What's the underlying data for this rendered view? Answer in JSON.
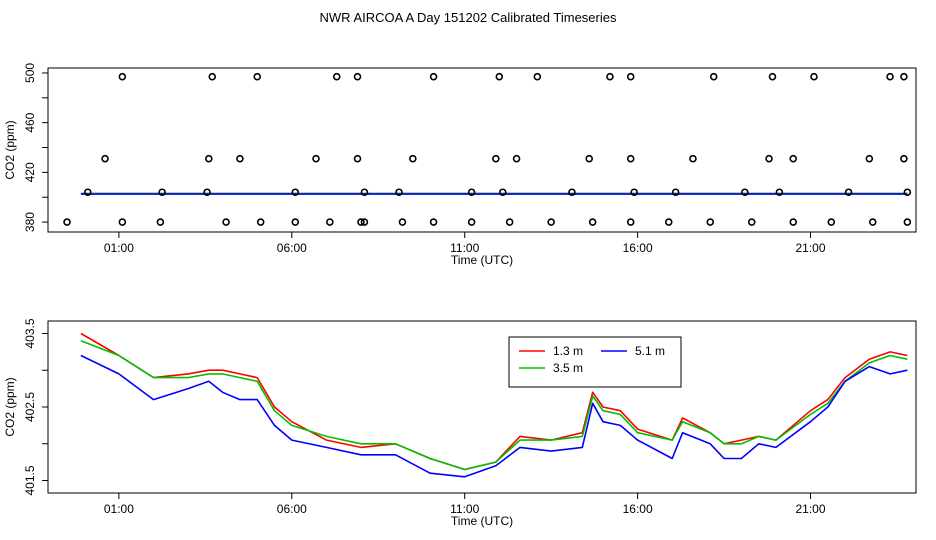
{
  "page_title": "NWR AIRCOA A  Day 151202  Calibrated Timeseries",
  "chart_data": [
    {
      "type": "scatter",
      "title": "",
      "xlabel": "Time (UTC)",
      "ylabel": "CO2 (ppm)",
      "xlim": [
        -1.05,
        24.05
      ],
      "ylim": [
        372,
        504
      ],
      "x_ticks": [
        {
          "value": 1,
          "label": "01:00"
        },
        {
          "value": 6,
          "label": "06:00"
        },
        {
          "value": 11,
          "label": "11:00"
        },
        {
          "value": 16,
          "label": "16:00"
        },
        {
          "value": 21,
          "label": "21:00"
        }
      ],
      "y_ticks": [
        {
          "value": 380,
          "label": "380"
        },
        {
          "value": 420,
          "label": "420"
        },
        {
          "value": 460,
          "label": "460"
        },
        {
          "value": 500,
          "label": "500"
        }
      ],
      "minor_y_ticks": [
        400,
        440,
        480
      ],
      "flask_points": {
        "x": [
          -0.5,
          1.1,
          2.2,
          4.1,
          5.1,
          6.1,
          7.1,
          8.0,
          8.1,
          9.2,
          10.1,
          11.2,
          12.3,
          13.5,
          14.7,
          15.8,
          16.9,
          18.1,
          19.3,
          20.5,
          21.6,
          22.8,
          23.8,
          0.1,
          2.25,
          3.55,
          6.1,
          8.1,
          9.1,
          11.2,
          12.1,
          14.1,
          15.9,
          17.1,
          19.1,
          20.1,
          22.1,
          23.8,
          0.6,
          3.6,
          4.5,
          6.7,
          7.9,
          9.5,
          11.9,
          12.5,
          14.6,
          15.8,
          17.6,
          19.8,
          20.5,
          22.7,
          23.7,
          1.1,
          3.7,
          5.0,
          7.3,
          7.9,
          10.1,
          12.0,
          13.1,
          15.2,
          15.8,
          18.2,
          19.9,
          21.1,
          23.3,
          23.7
        ],
        "y": [
          380,
          380,
          380,
          380,
          380,
          380,
          380,
          380,
          380,
          380,
          380,
          380,
          380,
          380,
          380,
          380,
          380,
          380,
          380,
          380,
          380,
          380,
          380,
          404,
          404,
          404,
          404,
          404,
          404,
          404,
          404,
          404,
          404,
          404,
          404,
          404,
          404,
          404,
          431,
          431,
          431,
          431,
          431,
          431,
          431,
          431,
          431,
          431,
          431,
          431,
          431,
          431,
          431,
          497,
          497,
          497,
          497,
          497,
          497,
          497,
          497,
          497,
          497,
          497,
          497,
          497,
          497,
          497
        ]
      },
      "series": [
        {
          "name": "1.3 m",
          "color": "#ff0000",
          "x": [
            -0.1,
            23.8
          ],
          "values": [
            402.9,
            402.9
          ]
        },
        {
          "name": "3.5 m",
          "color": "#00c000",
          "x": [
            -0.1,
            23.8
          ],
          "values": [
            402.9,
            402.9
          ]
        },
        {
          "name": "5.1 m",
          "color": "#0000ff",
          "x": [
            -0.1,
            23.8
          ],
          "values": [
            402.5,
            402.5
          ]
        }
      ]
    },
    {
      "type": "line",
      "title": "",
      "xlabel": "Time (UTC)",
      "ylabel": "CO2 (ppm)",
      "xlim": [
        -1.05,
        24.05
      ],
      "ylim": [
        401.33,
        403.67
      ],
      "x_ticks": [
        {
          "value": 1,
          "label": "01:00"
        },
        {
          "value": 6,
          "label": "06:00"
        },
        {
          "value": 11,
          "label": "11:00"
        },
        {
          "value": 16,
          "label": "16:00"
        },
        {
          "value": 21,
          "label": "21:00"
        }
      ],
      "y_ticks": [
        {
          "value": 401.5,
          "label": "401.5"
        },
        {
          "value": 402.5,
          "label": "402.5"
        },
        {
          "value": 403.5,
          "label": "403.5"
        }
      ],
      "minor_y_ticks": [
        402.0,
        403.0
      ],
      "legend": {
        "position": "top-center",
        "entries": [
          "1.3 m",
          "5.1 m",
          "3.5 m"
        ]
      },
      "series": [
        {
          "name": "1.3 m",
          "color": "#ff0000",
          "x": [
            -0.1,
            1.0,
            2.0,
            3.0,
            3.6,
            4.0,
            4.5,
            5.0,
            5.5,
            6.0,
            7.0,
            8.0,
            9.0,
            10.0,
            11.0,
            11.9,
            12.6,
            13.5,
            14.4,
            14.7,
            15.0,
            15.5,
            16.0,
            17.0,
            17.3,
            18.1,
            18.5,
            19.0,
            19.5,
            20.0,
            21.0,
            21.5,
            22.0,
            22.7,
            23.3,
            23.8
          ],
          "values": [
            403.5,
            403.2,
            402.9,
            402.95,
            403.0,
            403.0,
            402.95,
            402.9,
            402.5,
            402.3,
            402.05,
            401.95,
            402.0,
            401.8,
            401.65,
            401.75,
            402.1,
            402.05,
            402.15,
            402.7,
            402.5,
            402.45,
            402.2,
            402.05,
            402.35,
            402.15,
            402.0,
            402.05,
            402.1,
            402.05,
            402.45,
            402.6,
            402.9,
            403.15,
            403.25,
            403.2
          ]
        },
        {
          "name": "3.5 m",
          "color": "#00c000",
          "x": [
            -0.1,
            1.0,
            2.0,
            3.0,
            3.6,
            4.0,
            4.5,
            5.0,
            5.5,
            6.0,
            7.0,
            8.0,
            9.0,
            10.0,
            11.0,
            11.9,
            12.6,
            13.5,
            14.4,
            14.7,
            15.0,
            15.5,
            16.0,
            17.0,
            17.3,
            18.1,
            18.5,
            19.0,
            19.5,
            20.0,
            21.0,
            21.5,
            22.0,
            22.7,
            23.3,
            23.8
          ],
          "values": [
            403.4,
            403.2,
            402.9,
            402.9,
            402.95,
            402.95,
            402.9,
            402.85,
            402.45,
            402.25,
            402.1,
            402.0,
            402.0,
            401.8,
            401.65,
            401.75,
            402.05,
            402.05,
            402.1,
            402.65,
            402.45,
            402.4,
            402.15,
            402.05,
            402.3,
            402.15,
            402.0,
            402.0,
            402.1,
            402.05,
            402.4,
            402.55,
            402.85,
            403.1,
            403.2,
            403.15
          ]
        },
        {
          "name": "5.1 m",
          "color": "#0000ff",
          "x": [
            -0.1,
            1.0,
            2.0,
            3.0,
            3.6,
            4.0,
            4.5,
            5.0,
            5.5,
            6.0,
            7.0,
            8.0,
            9.0,
            10.0,
            11.0,
            11.9,
            12.6,
            13.5,
            14.4,
            14.7,
            15.0,
            15.5,
            16.0,
            17.0,
            17.3,
            18.1,
            18.5,
            19.0,
            19.5,
            20.0,
            21.0,
            21.5,
            22.0,
            22.7,
            23.3,
            23.8
          ],
          "values": [
            403.2,
            402.95,
            402.6,
            402.75,
            402.85,
            402.7,
            402.6,
            402.6,
            402.25,
            402.05,
            401.95,
            401.85,
            401.85,
            401.6,
            401.55,
            401.7,
            401.95,
            401.9,
            401.95,
            402.55,
            402.3,
            402.25,
            402.05,
            401.8,
            402.15,
            402.0,
            401.8,
            401.8,
            402.0,
            401.95,
            402.3,
            402.5,
            402.85,
            403.05,
            402.95,
            403.0
          ]
        }
      ]
    }
  ]
}
